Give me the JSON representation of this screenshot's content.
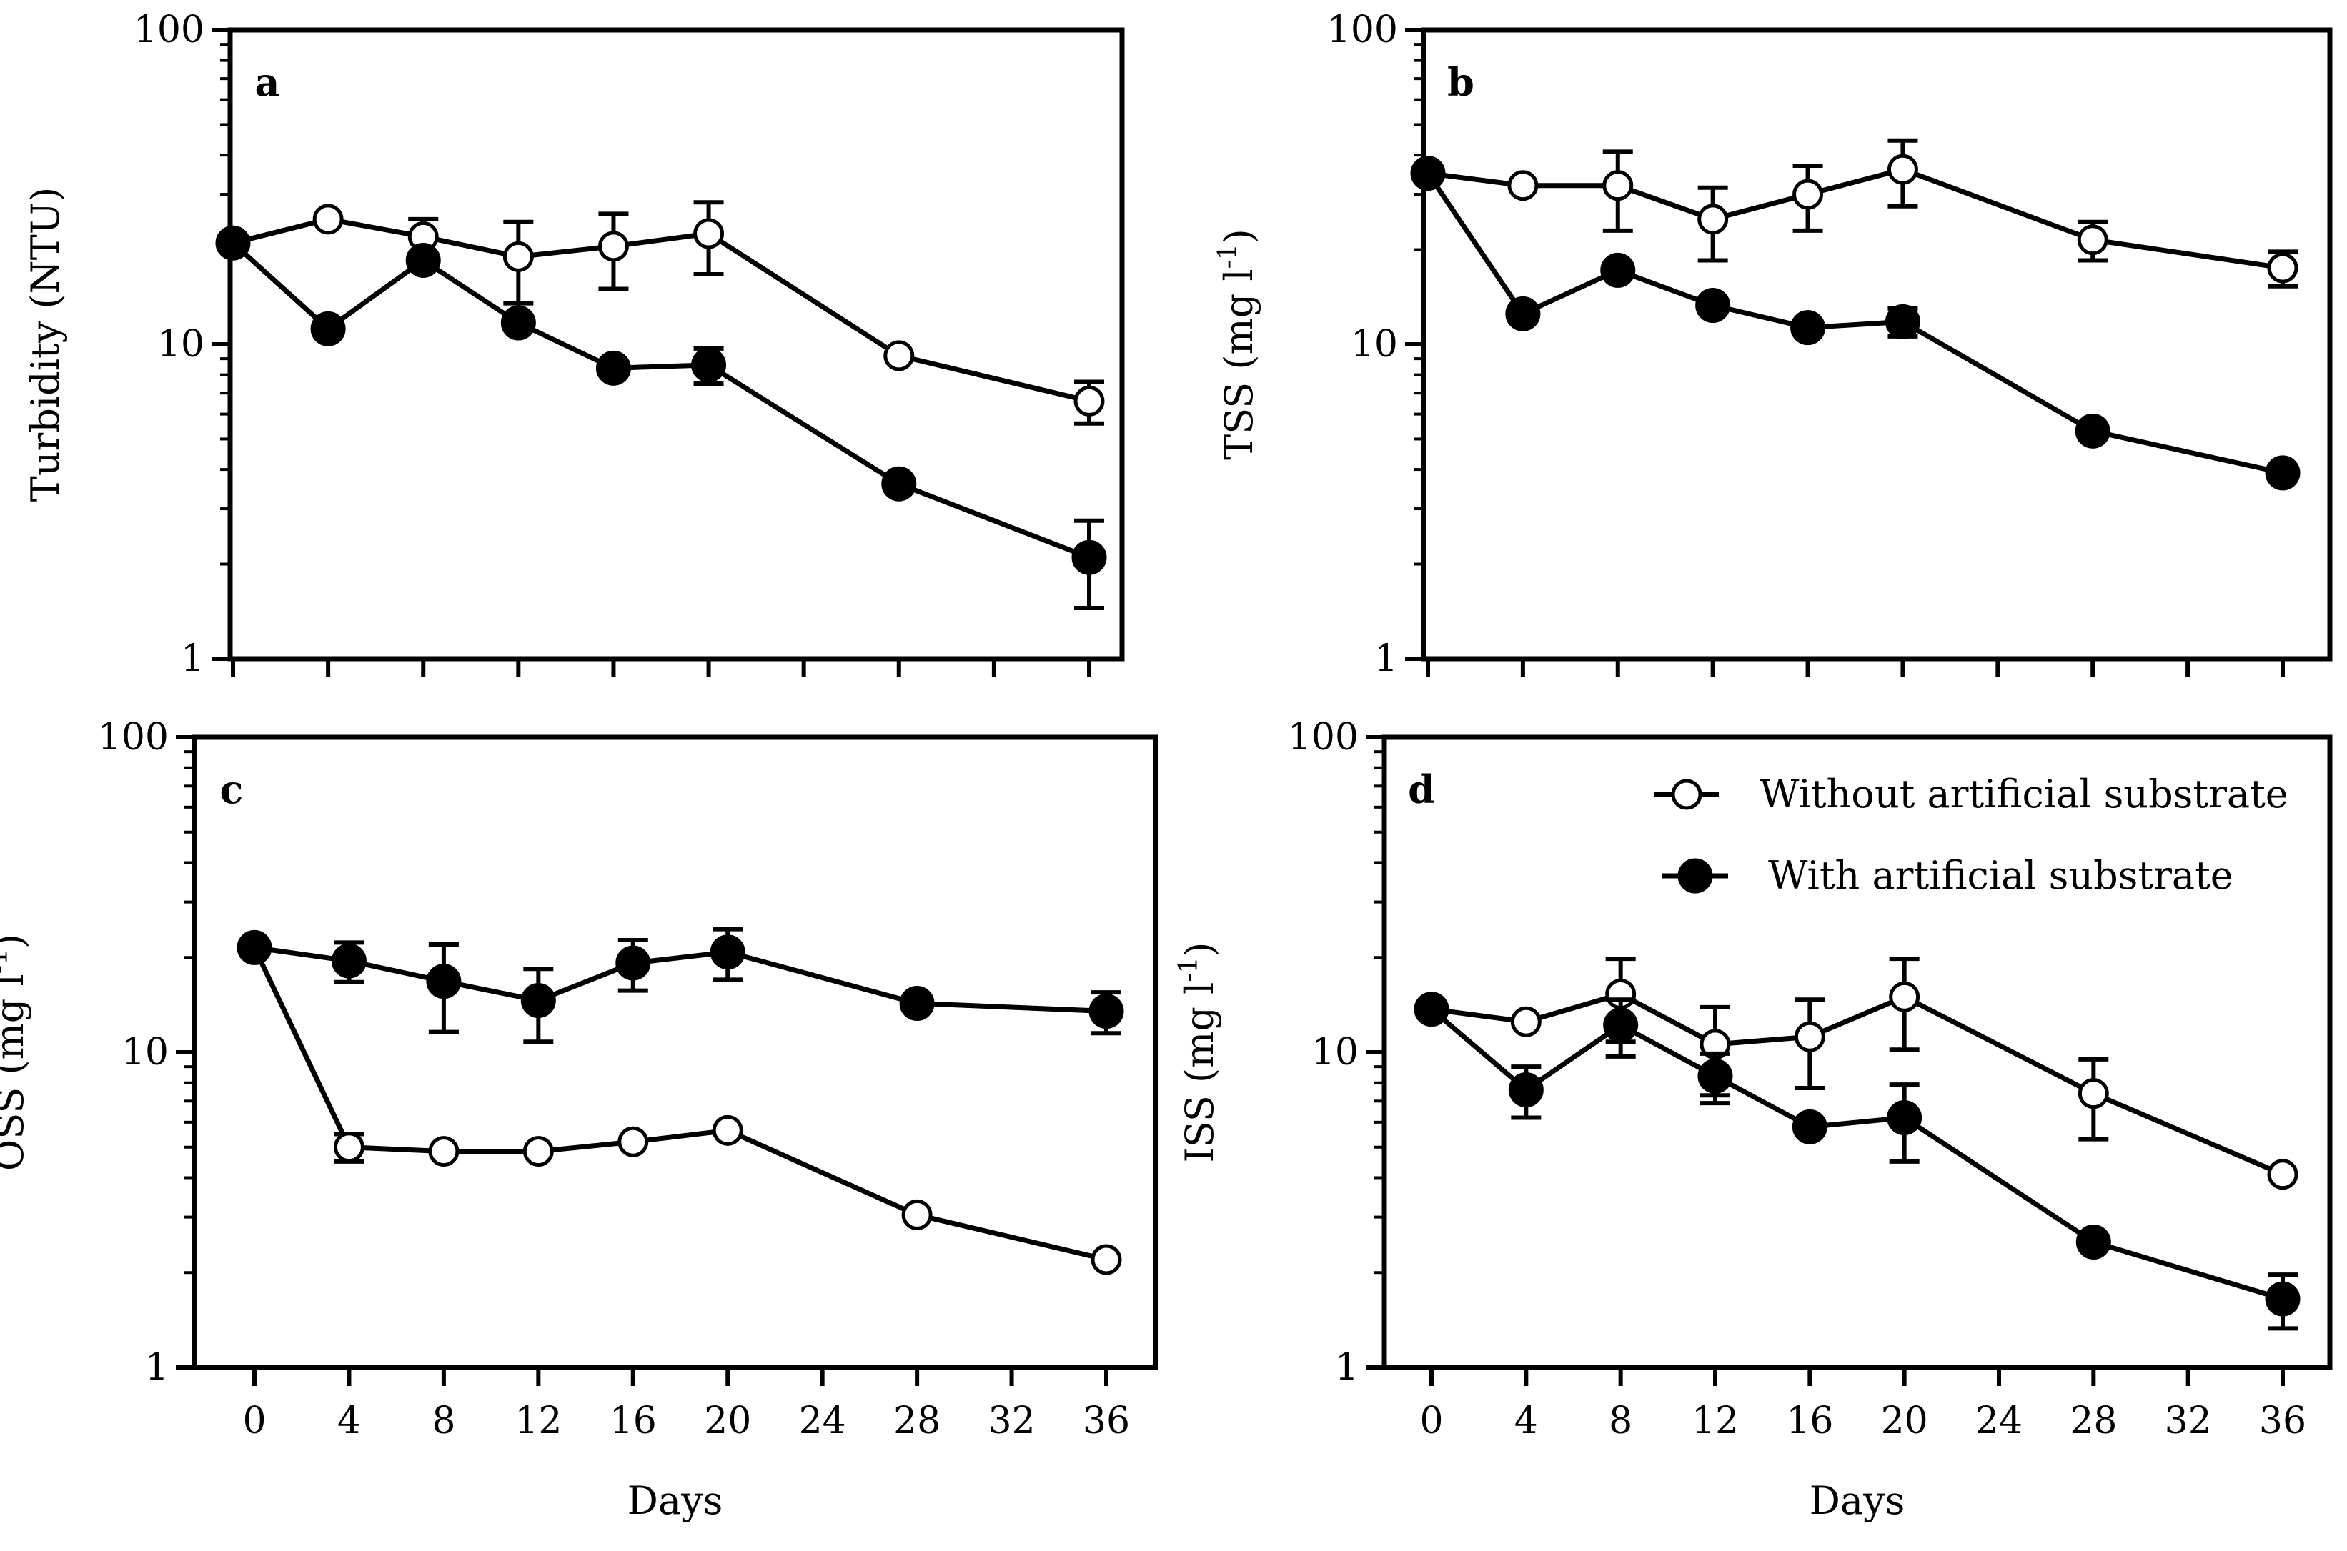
{
  "colors": {
    "line": "#000000",
    "open_fill": "#ffffff",
    "filled_fill": "#000000",
    "background": "#ffffff"
  },
  "legend": {
    "without": "Without artificial substrate",
    "with": "With artificial substrate"
  },
  "chart_data": [
    {
      "type": "line",
      "panel": "a",
      "ylabel": "Turbidity (NTU)",
      "xlabel": "",
      "yscale": "log",
      "ylim": [
        1,
        100
      ],
      "yticks": [
        "1",
        "10",
        "100"
      ],
      "xlim": [
        -3,
        39
      ],
      "xticks": [
        "0",
        "4",
        "8",
        "12",
        "16",
        "20",
        "24",
        "28",
        "32",
        "36"
      ],
      "x_tick_labels_visible": false,
      "series": [
        {
          "name": "Without artificial substrate",
          "marker": "open",
          "x": [
            0,
            4,
            8,
            12,
            16,
            20,
            28,
            36
          ],
          "y": [
            21,
            25,
            22,
            19,
            20.5,
            22.5,
            9.2,
            6.6
          ],
          "err": [
            0,
            0,
            3,
            5.5,
            5.5,
            5.8,
            0,
            1.0
          ]
        },
        {
          "name": "With artificial substrate",
          "marker": "filled",
          "x": [
            0,
            4,
            8,
            12,
            16,
            20,
            28,
            36
          ],
          "y": [
            21,
            11.2,
            18.5,
            11.7,
            8.4,
            8.6,
            3.6,
            2.1
          ],
          "err": [
            0,
            0,
            0,
            0,
            0,
            1.1,
            0,
            0.65
          ]
        }
      ]
    },
    {
      "type": "line",
      "panel": "b",
      "ylabel": "TSS (mg l",
      "ylabel_sup": "-1",
      "ylabel_end": ")",
      "xlabel": "",
      "yscale": "log",
      "ylim": [
        1,
        100
      ],
      "yticks": [
        "1",
        "10",
        "100"
      ],
      "xlim": [
        -3,
        39
      ],
      "xticks": [
        "0",
        "4",
        "8",
        "12",
        "16",
        "20",
        "24",
        "28",
        "32",
        "36"
      ],
      "x_tick_labels_visible": false,
      "series": [
        {
          "name": "Without artificial substrate",
          "marker": "open",
          "x": [
            0,
            4,
            8,
            12,
            16,
            20,
            28,
            36
          ],
          "y": [
            35,
            32,
            32,
            25,
            30,
            36,
            21.5,
            17.5
          ],
          "err": [
            0,
            0,
            9,
            6.5,
            7,
            8.5,
            3,
            2.2
          ]
        },
        {
          "name": "With artificial substrate",
          "marker": "filled",
          "x": [
            0,
            4,
            8,
            12,
            16,
            20,
            28,
            36
          ],
          "y": [
            35,
            12.5,
            17.2,
            13.3,
            11.3,
            11.8,
            5.3,
            3.9
          ],
          "err": [
            0,
            0,
            0,
            0,
            0,
            1.2,
            0,
            0
          ]
        }
      ]
    },
    {
      "type": "line",
      "panel": "c",
      "ylabel": "OSS (mg l",
      "ylabel_sup": "-1",
      "ylabel_end": ")",
      "xlabel": "Days",
      "yscale": "log",
      "ylim": [
        1,
        100
      ],
      "yticks": [
        "1",
        "10",
        "100"
      ],
      "xlim": [
        -3,
        39
      ],
      "xticks": [
        "0",
        "4",
        "8",
        "12",
        "16",
        "20",
        "24",
        "28",
        "32",
        "36"
      ],
      "x_tick_labels_visible": true,
      "series": [
        {
          "name": "Without artificial substrate",
          "marker": "open",
          "x": [
            0,
            4,
            8,
            12,
            16,
            20,
            28,
            36
          ],
          "y": [
            21.5,
            5.0,
            4.85,
            4.85,
            5.2,
            5.65,
            3.05,
            2.2
          ],
          "err": [
            0,
            0.5,
            0,
            0,
            0,
            0,
            0,
            0
          ]
        },
        {
          "name": "With artificial substrate",
          "marker": "filled",
          "x": [
            0,
            4,
            8,
            12,
            16,
            20,
            28,
            36
          ],
          "y": [
            21.5,
            19.5,
            16.8,
            14.6,
            19.2,
            20.8,
            14.3,
            13.5
          ],
          "err": [
            0,
            2.8,
            5.2,
            3.8,
            3.5,
            3.8,
            0,
            2.0
          ]
        }
      ]
    },
    {
      "type": "line",
      "panel": "d",
      "ylabel": "ISS (mg l",
      "ylabel_sup": "-1",
      "ylabel_end": ")",
      "xlabel": "Days",
      "yscale": "log",
      "ylim": [
        1,
        100
      ],
      "yticks": [
        "1",
        "10",
        "100"
      ],
      "xlim": [
        -3,
        39
      ],
      "xticks": [
        "0",
        "4",
        "8",
        "12",
        "16",
        "20",
        "24",
        "28",
        "32",
        "36"
      ],
      "x_tick_labels_visible": true,
      "legend_position": "top-right",
      "series": [
        {
          "name": "Without artificial substrate",
          "marker": "open",
          "x": [
            0,
            4,
            8,
            12,
            16,
            20,
            28,
            36
          ],
          "y": [
            13.7,
            12.5,
            15.3,
            10.6,
            11.2,
            15.0,
            7.4,
            4.1
          ],
          "err": [
            0,
            0,
            4.5,
            3.3,
            3.5,
            4.8,
            2.1,
            0
          ]
        },
        {
          "name": "With artificial substrate",
          "marker": "filled",
          "x": [
            0,
            4,
            8,
            12,
            16,
            20,
            28,
            36
          ],
          "y": [
            13.7,
            7.6,
            12.2,
            8.4,
            5.8,
            6.2,
            2.5,
            1.65
          ],
          "err": [
            0,
            1.4,
            2.5,
            1.5,
            0,
            1.7,
            0,
            0.32
          ]
        }
      ]
    }
  ]
}
